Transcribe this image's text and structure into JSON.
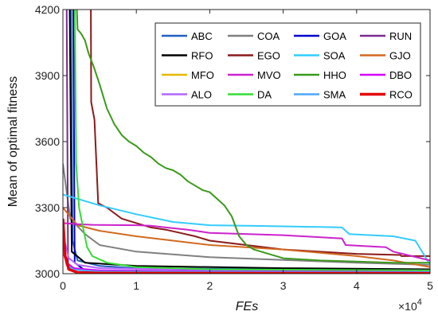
{
  "chart_data": {
    "type": "line",
    "xlabel": "FEs",
    "ylabel": "Mean of optimal fitness",
    "xlim": [
      0,
      50000
    ],
    "ylim": [
      3000,
      4200
    ],
    "x_tick_values": [
      0,
      10000,
      20000,
      30000,
      40000,
      50000
    ],
    "x_tick_labels": [
      "0",
      "1",
      "2",
      "3",
      "4",
      "5"
    ],
    "x_scale_label": "×10",
    "x_scale_exponent": "4",
    "y_tick_values": [
      3000,
      3300,
      3600,
      3900,
      4200
    ],
    "y_tick_labels": [
      "3000",
      "3300",
      "3600",
      "3900",
      "4200"
    ],
    "grid": false,
    "legend_position": "top-right",
    "series": [
      {
        "name": "ABC",
        "color": "#1f5fbf",
        "points": [
          [
            0,
            4300
          ],
          [
            1100,
            4300
          ],
          [
            1300,
            3150
          ],
          [
            2000,
            3060
          ],
          [
            5000,
            3035
          ],
          [
            10000,
            3025
          ],
          [
            30000,
            3020
          ],
          [
            50000,
            3020
          ]
        ]
      },
      {
        "name": "COA",
        "color": "#808080",
        "points": [
          [
            0,
            3500
          ],
          [
            1000,
            3250
          ],
          [
            3000,
            3180
          ],
          [
            5000,
            3130
          ],
          [
            10000,
            3100
          ],
          [
            20000,
            3075
          ],
          [
            30000,
            3062
          ],
          [
            40000,
            3050
          ],
          [
            50000,
            3040
          ]
        ]
      },
      {
        "name": "GOA",
        "color": "#0000cc",
        "points": [
          [
            0,
            4300
          ],
          [
            1400,
            4300
          ],
          [
            1600,
            3050
          ],
          [
            3000,
            3015
          ],
          [
            10000,
            3008
          ],
          [
            50000,
            3005
          ]
        ]
      },
      {
        "name": "RUN",
        "color": "#7b2a8f",
        "points": [
          [
            0,
            4300
          ],
          [
            500,
            4300
          ],
          [
            700,
            3020
          ],
          [
            2000,
            3008
          ],
          [
            10000,
            3004
          ],
          [
            50000,
            3002
          ]
        ]
      },
      {
        "name": "RFO",
        "color": "#000000",
        "points": [
          [
            0,
            4300
          ],
          [
            900,
            4300
          ],
          [
            1200,
            3100
          ],
          [
            3000,
            3050
          ],
          [
            10000,
            3035
          ],
          [
            30000,
            3025
          ],
          [
            50000,
            3020
          ]
        ]
      },
      {
        "name": "EGO",
        "color": "#8b1a1a",
        "points": [
          [
            0,
            4300
          ],
          [
            3800,
            4300
          ],
          [
            3850,
            3780
          ],
          [
            4300,
            3700
          ],
          [
            4800,
            3320
          ],
          [
            6000,
            3300
          ],
          [
            8000,
            3250
          ],
          [
            10000,
            3230
          ],
          [
            12000,
            3210
          ],
          [
            14000,
            3200
          ],
          [
            16000,
            3185
          ],
          [
            18000,
            3170
          ],
          [
            20000,
            3150
          ],
          [
            30000,
            3110
          ],
          [
            40000,
            3090
          ],
          [
            46000,
            3085
          ],
          [
            46100,
            3080
          ],
          [
            50000,
            3080
          ]
        ]
      },
      {
        "name": "SOA",
        "color": "#33ccff",
        "points": [
          [
            0,
            3360
          ],
          [
            2000,
            3340
          ],
          [
            5000,
            3310
          ],
          [
            10000,
            3270
          ],
          [
            15000,
            3235
          ],
          [
            20000,
            3220
          ],
          [
            25000,
            3218
          ],
          [
            30000,
            3215
          ],
          [
            35000,
            3212
          ],
          [
            38000,
            3210
          ],
          [
            39000,
            3180
          ],
          [
            45000,
            3170
          ],
          [
            48000,
            3150
          ],
          [
            50000,
            3040
          ]
        ]
      },
      {
        "name": "GJO",
        "color": "#d2691e",
        "points": [
          [
            0,
            3300
          ],
          [
            1000,
            3260
          ],
          [
            2000,
            3220
          ],
          [
            5000,
            3195
          ],
          [
            10000,
            3170
          ],
          [
            15000,
            3150
          ],
          [
            20000,
            3130
          ],
          [
            30000,
            3110
          ],
          [
            40000,
            3080
          ],
          [
            45000,
            3060
          ],
          [
            50000,
            3030
          ]
        ]
      },
      {
        "name": "MFO",
        "color": "#e6b800",
        "points": [
          [
            0,
            3120
          ],
          [
            500,
            3040
          ],
          [
            2000,
            3020
          ],
          [
            5000,
            3012
          ],
          [
            50000,
            3008
          ]
        ]
      },
      {
        "name": "MVO",
        "color": "#cc22cc",
        "points": [
          [
            0,
            3230
          ],
          [
            2000,
            3225
          ],
          [
            4000,
            3222
          ],
          [
            10000,
            3220
          ],
          [
            12000,
            3218
          ],
          [
            14000,
            3210
          ],
          [
            17000,
            3200
          ],
          [
            19000,
            3190
          ],
          [
            20000,
            3185
          ],
          [
            30000,
            3175
          ],
          [
            38000,
            3160
          ],
          [
            38500,
            3130
          ],
          [
            44000,
            3120
          ],
          [
            45000,
            3100
          ],
          [
            50000,
            3060
          ]
        ]
      },
      {
        "name": "HHO",
        "color": "#3a9a1a",
        "points": [
          [
            0,
            4300
          ],
          [
            1800,
            4300
          ],
          [
            2000,
            4110
          ],
          [
            2500,
            4090
          ],
          [
            3000,
            4060
          ],
          [
            3500,
            4000
          ],
          [
            4200,
            3940
          ],
          [
            5000,
            3860
          ],
          [
            6000,
            3750
          ],
          [
            7000,
            3680
          ],
          [
            8000,
            3630
          ],
          [
            9000,
            3600
          ],
          [
            10000,
            3580
          ],
          [
            11000,
            3550
          ],
          [
            12000,
            3530
          ],
          [
            13000,
            3500
          ],
          [
            14000,
            3480
          ],
          [
            15000,
            3470
          ],
          [
            16000,
            3450
          ],
          [
            17000,
            3420
          ],
          [
            18000,
            3400
          ],
          [
            19000,
            3380
          ],
          [
            20000,
            3370
          ],
          [
            21000,
            3340
          ],
          [
            22000,
            3310
          ],
          [
            23000,
            3260
          ],
          [
            24000,
            3170
          ],
          [
            25000,
            3130
          ],
          [
            26000,
            3110
          ],
          [
            27000,
            3100
          ],
          [
            28000,
            3090
          ],
          [
            30000,
            3070
          ],
          [
            35000,
            3060
          ],
          [
            40000,
            3055
          ],
          [
            45000,
            3050
          ],
          [
            50000,
            3050
          ]
        ]
      },
      {
        "name": "DBO",
        "color": "#d400ff",
        "points": [
          [
            0,
            3100
          ],
          [
            500,
            3050
          ],
          [
            1500,
            3025
          ],
          [
            5000,
            3015
          ],
          [
            20000,
            3012
          ],
          [
            50000,
            3010
          ]
        ]
      },
      {
        "name": "ALO",
        "color": "#b266ff",
        "points": [
          [
            0,
            3180
          ],
          [
            800,
            3070
          ],
          [
            2000,
            3040
          ],
          [
            5000,
            3025
          ],
          [
            20000,
            3018
          ],
          [
            50000,
            3015
          ]
        ]
      },
      {
        "name": "DA",
        "color": "#33dd33",
        "points": [
          [
            0,
            4300
          ],
          [
            1600,
            4300
          ],
          [
            1800,
            3500
          ],
          [
            2200,
            3300
          ],
          [
            2800,
            3200
          ],
          [
            3300,
            3120
          ],
          [
            4000,
            3080
          ],
          [
            6000,
            3050
          ],
          [
            10000,
            3030
          ],
          [
            20000,
            3020
          ],
          [
            50000,
            3015
          ]
        ]
      },
      {
        "name": "SMA",
        "color": "#4da6ff",
        "points": [
          [
            0,
            3120
          ],
          [
            500,
            3040
          ],
          [
            1500,
            3018
          ],
          [
            5000,
            3010
          ],
          [
            50000,
            3006
          ]
        ]
      },
      {
        "name": "RCO",
        "color": "#e60000",
        "points": [
          [
            0,
            3250
          ],
          [
            300,
            3080
          ],
          [
            800,
            3020
          ],
          [
            2000,
            3005
          ],
          [
            5000,
            3003
          ],
          [
            50000,
            3001
          ]
        ]
      }
    ]
  }
}
